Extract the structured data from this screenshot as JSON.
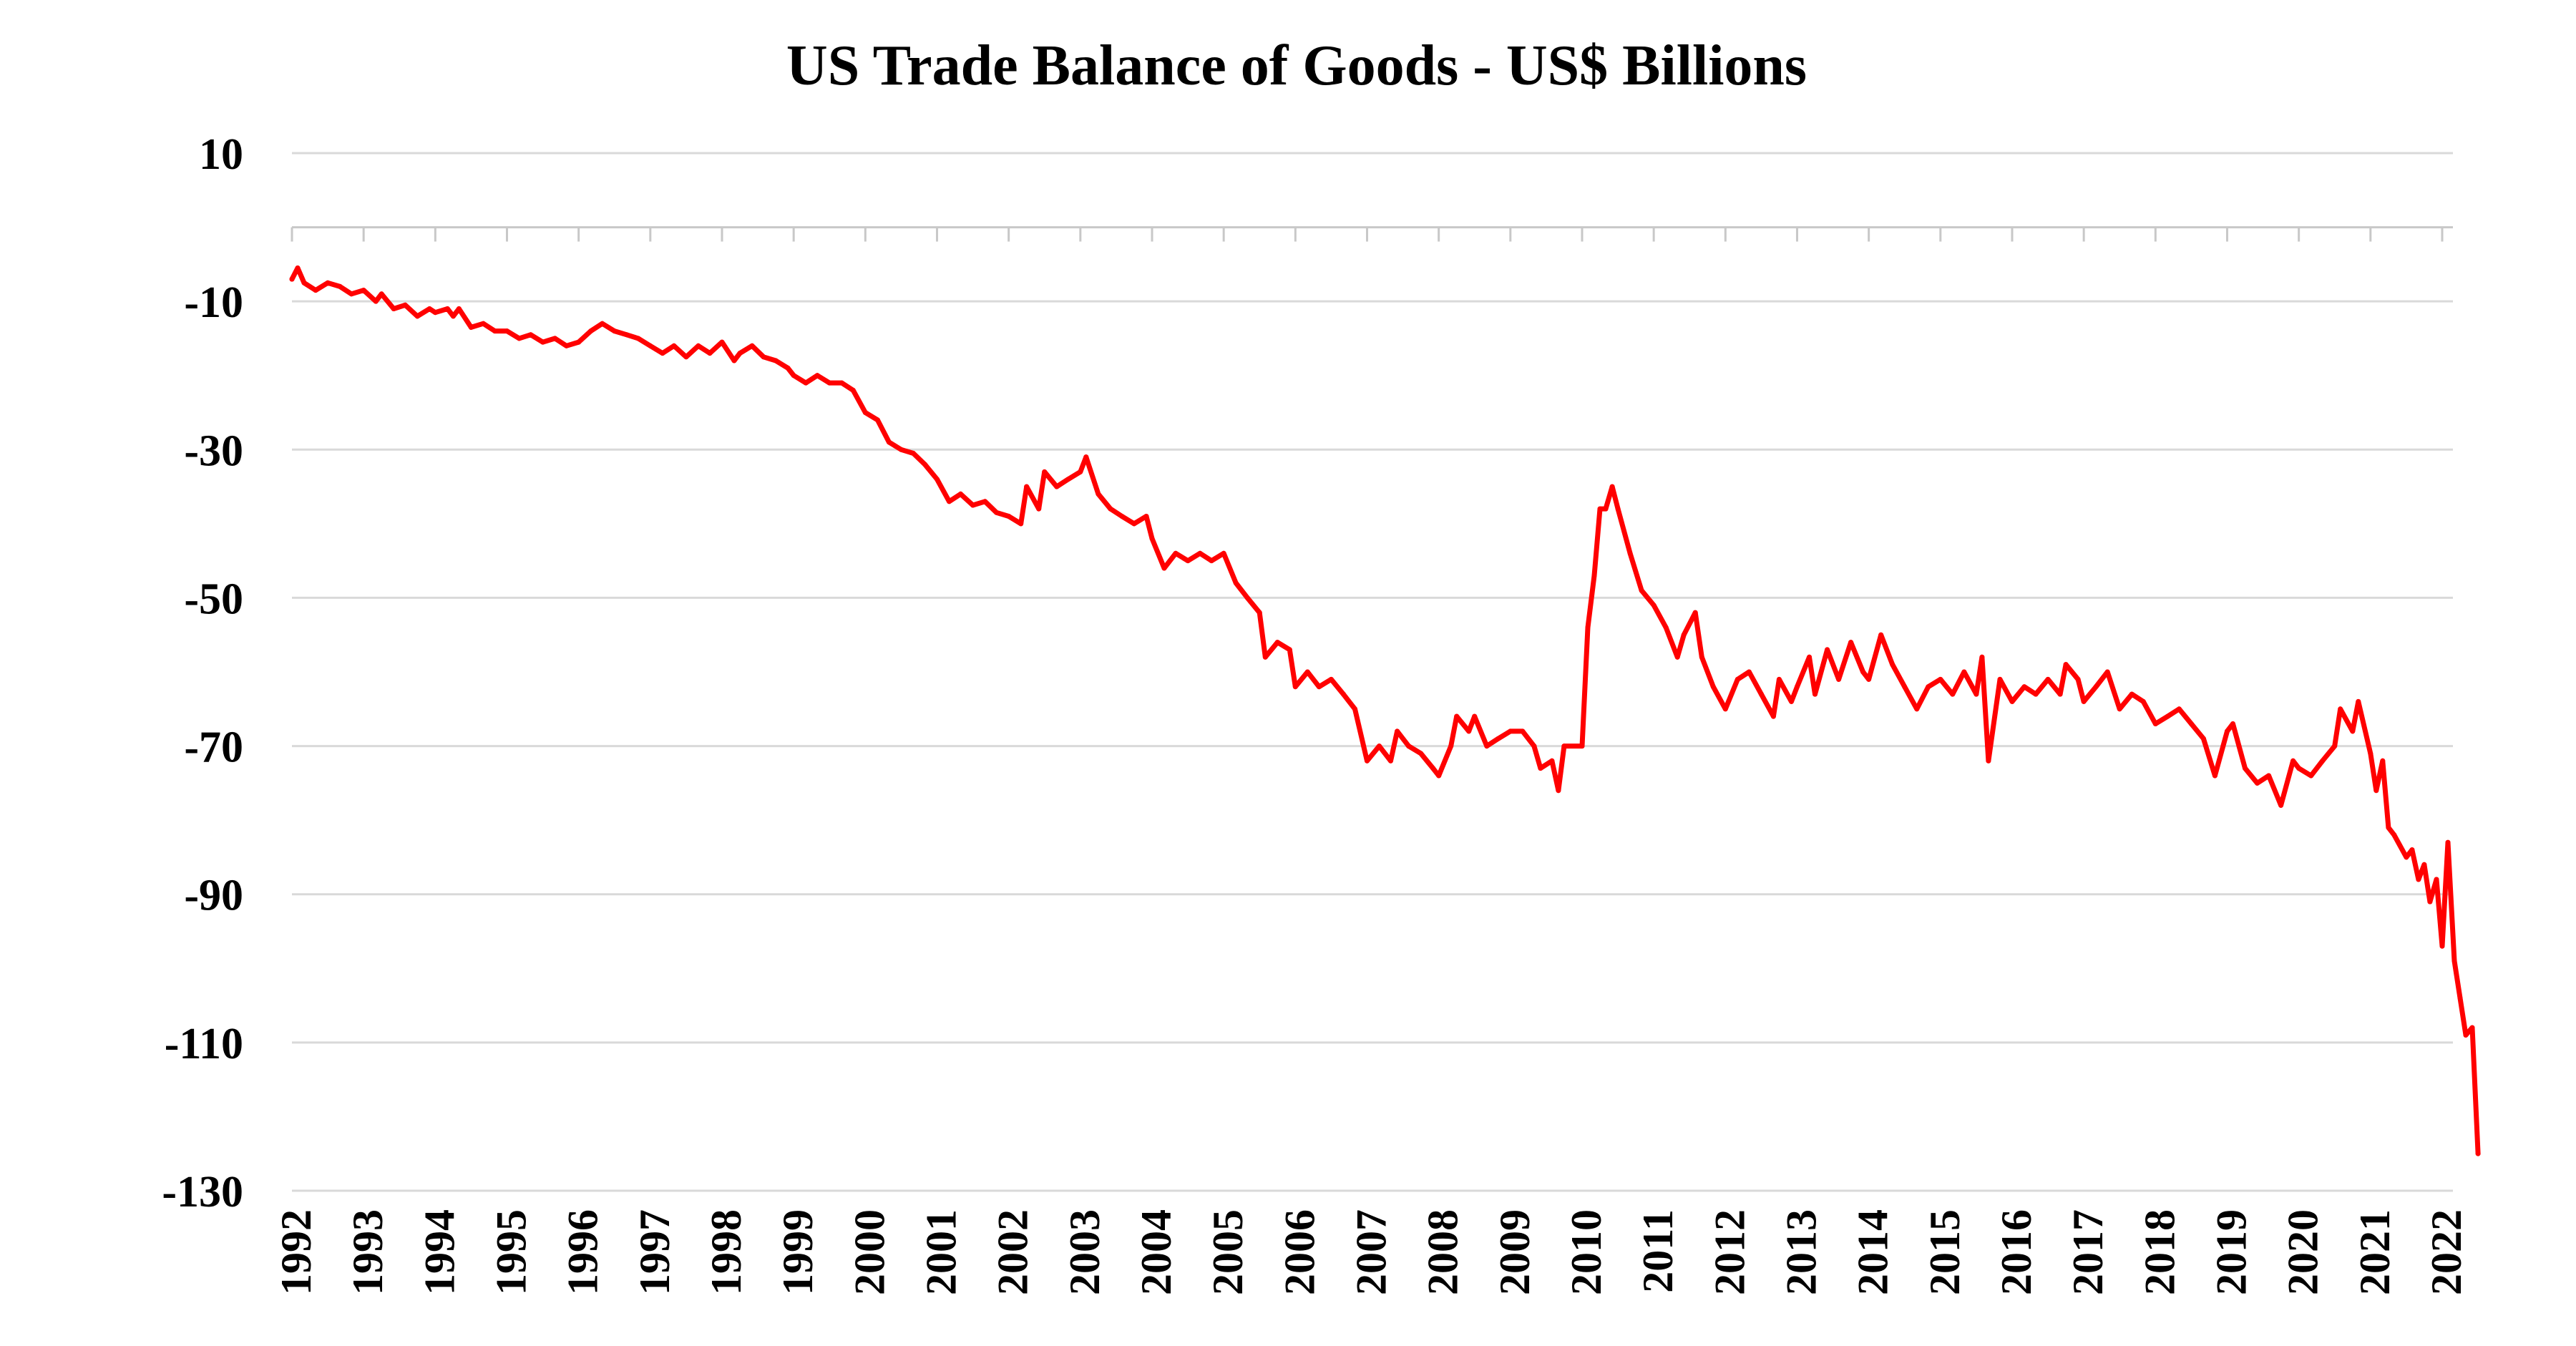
{
  "chart_data": {
    "type": "line",
    "title": "US Trade Balance of Goods - US$ Billions",
    "xlabel": "",
    "ylabel": "",
    "ylim": [
      -130,
      10
    ],
    "yticks": [
      10,
      -10,
      -30,
      -50,
      -70,
      -90,
      -110,
      -130
    ],
    "ytick_labels": [
      "10",
      "-10",
      "-30",
      "-50",
      "-70",
      "-90",
      "-110",
      "-130"
    ],
    "xlim": [
      1992.0,
      2022.15
    ],
    "xticks": [
      1992,
      1993,
      1994,
      1995,
      1996,
      1997,
      1998,
      1999,
      2000,
      2001,
      2002,
      2003,
      2004,
      2005,
      2006,
      2007,
      2008,
      2009,
      2010,
      2011,
      2012,
      2013,
      2014,
      2015,
      2016,
      2017,
      2018,
      2019,
      2020,
      2021,
      2022
    ],
    "xtick_labels": [
      "1992",
      "1993",
      "1994",
      "1995",
      "1996",
      "1997",
      "1998",
      "1999",
      "2000",
      "2001",
      "2002",
      "2003",
      "2004",
      "2005",
      "2006",
      "2007",
      "2008",
      "2009",
      "2010",
      "2011",
      "2012",
      "2013",
      "2014",
      "2015",
      "2016",
      "2017",
      "2018",
      "2019",
      "2020",
      "2021",
      "2022"
    ],
    "grid": true,
    "legend": "none",
    "series": [
      {
        "name": "US Trade Balance of Goods",
        "color": "#ff0000",
        "points": [
          [
            1992.0,
            -7
          ],
          [
            1992.08,
            -5.5
          ],
          [
            1992.17,
            -7.5
          ],
          [
            1992.33,
            -8.5
          ],
          [
            1992.5,
            -7.5
          ],
          [
            1992.67,
            -8
          ],
          [
            1992.83,
            -9
          ],
          [
            1993.0,
            -8.5
          ],
          [
            1993.17,
            -10
          ],
          [
            1993.25,
            -9
          ],
          [
            1993.42,
            -11
          ],
          [
            1993.58,
            -10.5
          ],
          [
            1993.75,
            -12
          ],
          [
            1993.92,
            -11
          ],
          [
            1994.0,
            -11.5
          ],
          [
            1994.17,
            -11
          ],
          [
            1994.25,
            -12
          ],
          [
            1994.33,
            -11
          ],
          [
            1994.5,
            -13.5
          ],
          [
            1994.67,
            -13
          ],
          [
            1994.83,
            -14
          ],
          [
            1995.0,
            -14
          ],
          [
            1995.17,
            -15
          ],
          [
            1995.33,
            -14.5
          ],
          [
            1995.5,
            -15.5
          ],
          [
            1995.67,
            -15
          ],
          [
            1995.83,
            -16
          ],
          [
            1996.0,
            -15.5
          ],
          [
            1996.17,
            -14
          ],
          [
            1996.33,
            -13
          ],
          [
            1996.5,
            -14
          ],
          [
            1996.67,
            -14.5
          ],
          [
            1996.83,
            -15
          ],
          [
            1997.0,
            -16
          ],
          [
            1997.17,
            -17
          ],
          [
            1997.33,
            -16
          ],
          [
            1997.5,
            -17.5
          ],
          [
            1997.67,
            -16
          ],
          [
            1997.83,
            -17
          ],
          [
            1998.0,
            -15.5
          ],
          [
            1998.17,
            -18
          ],
          [
            1998.25,
            -17
          ],
          [
            1998.42,
            -16
          ],
          [
            1998.58,
            -17.5
          ],
          [
            1998.75,
            -18
          ],
          [
            1998.92,
            -19
          ],
          [
            1999.0,
            -20
          ],
          [
            1999.17,
            -21
          ],
          [
            1999.33,
            -20
          ],
          [
            1999.5,
            -21
          ],
          [
            1999.67,
            -21
          ],
          [
            1999.83,
            -22
          ],
          [
            2000.0,
            -25
          ],
          [
            2000.17,
            -26
          ],
          [
            2000.33,
            -29
          ],
          [
            2000.5,
            -30
          ],
          [
            2000.67,
            -30.5
          ],
          [
            2000.83,
            -32
          ],
          [
            2001.0,
            -34
          ],
          [
            2001.17,
            -37
          ],
          [
            2001.33,
            -36
          ],
          [
            2001.5,
            -37.5
          ],
          [
            2001.67,
            -37
          ],
          [
            2001.83,
            -38.5
          ],
          [
            2002.0,
            -39
          ],
          [
            2002.17,
            -40
          ],
          [
            2002.25,
            -35
          ],
          [
            2002.42,
            -38
          ],
          [
            2002.5,
            -33
          ],
          [
            2002.67,
            -35
          ],
          [
            2002.83,
            -34
          ],
          [
            2003.0,
            -33
          ],
          [
            2003.08,
            -31
          ],
          [
            2003.25,
            -36
          ],
          [
            2003.42,
            -38
          ],
          [
            2003.58,
            -39
          ],
          [
            2003.75,
            -40
          ],
          [
            2003.92,
            -39
          ],
          [
            2004.0,
            -42
          ],
          [
            2004.17,
            -46
          ],
          [
            2004.33,
            -44
          ],
          [
            2004.5,
            -45
          ],
          [
            2004.67,
            -44
          ],
          [
            2004.83,
            -45
          ],
          [
            2005.0,
            -44
          ],
          [
            2005.17,
            -48
          ],
          [
            2005.33,
            -50
          ],
          [
            2005.5,
            -52
          ],
          [
            2005.58,
            -58
          ],
          [
            2005.75,
            -56
          ],
          [
            2005.92,
            -57
          ],
          [
            2006.0,
            -62
          ],
          [
            2006.17,
            -60
          ],
          [
            2006.33,
            -62
          ],
          [
            2006.5,
            -61
          ],
          [
            2006.67,
            -63
          ],
          [
            2006.83,
            -65
          ],
          [
            2007.0,
            -72
          ],
          [
            2007.17,
            -70
          ],
          [
            2007.33,
            -72
          ],
          [
            2007.42,
            -68
          ],
          [
            2007.58,
            -70
          ],
          [
            2007.75,
            -71
          ],
          [
            2007.92,
            -73
          ],
          [
            2008.0,
            -74
          ],
          [
            2008.17,
            -70
          ],
          [
            2008.25,
            -66
          ],
          [
            2008.42,
            -68
          ],
          [
            2008.5,
            -66
          ],
          [
            2008.67,
            -70
          ],
          [
            2008.83,
            -69
          ],
          [
            2009.0,
            -68
          ],
          [
            2009.17,
            -68
          ],
          [
            2009.33,
            -70
          ],
          [
            2009.42,
            -73
          ],
          [
            2009.58,
            -72
          ],
          [
            2009.67,
            -76
          ],
          [
            2009.75,
            -70
          ],
          [
            2010.0,
            -70
          ],
          [
            2010.08,
            -54
          ],
          [
            2010.17,
            -47
          ],
          [
            2010.25,
            -38
          ],
          [
            2010.33,
            -38
          ],
          [
            2010.42,
            -35
          ],
          [
            2010.5,
            -38
          ],
          [
            2010.67,
            -44
          ],
          [
            2010.83,
            -49
          ],
          [
            2011.0,
            -51
          ],
          [
            2011.17,
            -54
          ],
          [
            2011.33,
            -58
          ],
          [
            2011.42,
            -55
          ],
          [
            2011.58,
            -52
          ],
          [
            2011.67,
            -58
          ],
          [
            2011.83,
            -62
          ],
          [
            2012.0,
            -65
          ],
          [
            2012.17,
            -61
          ],
          [
            2012.33,
            -60
          ],
          [
            2012.5,
            -63
          ],
          [
            2012.67,
            -66
          ],
          [
            2012.75,
            -61
          ],
          [
            2012.92,
            -64
          ],
          [
            2013.0,
            -62
          ],
          [
            2013.17,
            -58
          ],
          [
            2013.25,
            -63
          ],
          [
            2013.42,
            -57
          ],
          [
            2013.58,
            -61
          ],
          [
            2013.75,
            -56
          ],
          [
            2013.92,
            -60
          ],
          [
            2014.0,
            -61
          ],
          [
            2014.17,
            -55
          ],
          [
            2014.33,
            -59
          ],
          [
            2014.5,
            -62
          ],
          [
            2014.67,
            -65
          ],
          [
            2014.83,
            -62
          ],
          [
            2015.0,
            -61
          ],
          [
            2015.17,
            -63
          ],
          [
            2015.33,
            -60
          ],
          [
            2015.5,
            -63
          ],
          [
            2015.58,
            -58
          ],
          [
            2015.67,
            -72
          ],
          [
            2015.83,
            -61
          ],
          [
            2016.0,
            -64
          ],
          [
            2016.17,
            -62
          ],
          [
            2016.33,
            -63
          ],
          [
            2016.5,
            -61
          ],
          [
            2016.67,
            -63
          ],
          [
            2016.75,
            -59
          ],
          [
            2016.92,
            -61
          ],
          [
            2017.0,
            -64
          ],
          [
            2017.17,
            -62
          ],
          [
            2017.33,
            -60
          ],
          [
            2017.5,
            -65
          ],
          [
            2017.67,
            -63
          ],
          [
            2017.83,
            -64
          ],
          [
            2018.0,
            -67
          ],
          [
            2018.17,
            -66
          ],
          [
            2018.33,
            -65
          ],
          [
            2018.5,
            -67
          ],
          [
            2018.67,
            -69
          ],
          [
            2018.83,
            -74
          ],
          [
            2019.0,
            -68
          ],
          [
            2019.08,
            -67
          ],
          [
            2019.25,
            -73
          ],
          [
            2019.42,
            -75
          ],
          [
            2019.58,
            -74
          ],
          [
            2019.75,
            -78
          ],
          [
            2019.92,
            -72
          ],
          [
            2020.0,
            -73
          ],
          [
            2020.17,
            -74
          ],
          [
            2020.33,
            -72
          ],
          [
            2020.5,
            -70
          ],
          [
            2020.58,
            -65
          ],
          [
            2020.75,
            -68
          ],
          [
            2020.83,
            -64
          ],
          [
            2021.0,
            -71
          ],
          [
            2021.08,
            -76
          ],
          [
            2021.17,
            -72
          ],
          [
            2021.25,
            -81
          ],
          [
            2021.33,
            -82
          ],
          [
            2021.5,
            -85
          ],
          [
            2021.58,
            -84
          ],
          [
            2021.67,
            -88
          ],
          [
            2021.75,
            -86
          ],
          [
            2021.83,
            -91
          ],
          [
            2021.92,
            -88
          ],
          [
            2022.0,
            -97
          ],
          [
            2022.08,
            -83
          ],
          [
            2022.17,
            -99
          ],
          [
            2022.25,
            -104
          ],
          [
            2022.33,
            -109
          ],
          [
            2022.42,
            -108
          ],
          [
            2022.5,
            -125
          ]
        ]
      }
    ]
  }
}
